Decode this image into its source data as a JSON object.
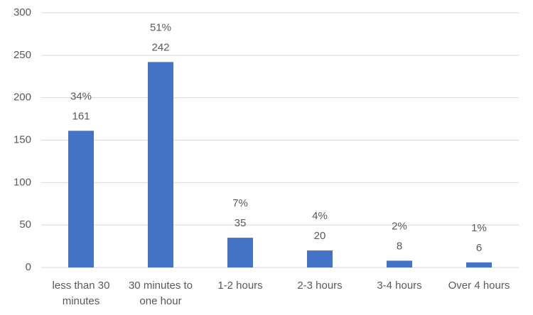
{
  "chart_data": {
    "type": "bar",
    "categories": [
      "less than 30 minutes",
      "30 minutes to one hour",
      "1-2 hours",
      "2-3 hours",
      "3-4 hours",
      "Over 4 hours"
    ],
    "values": [
      161,
      242,
      35,
      20,
      8,
      6
    ],
    "percent_labels": [
      "34%",
      "51%",
      "7%",
      "4%",
      "2%",
      "1%"
    ],
    "color": "#4472c4",
    "ylim": [
      0,
      300
    ],
    "yticks": [
      0,
      50,
      100,
      150,
      200,
      250,
      300
    ],
    "grid": true
  }
}
